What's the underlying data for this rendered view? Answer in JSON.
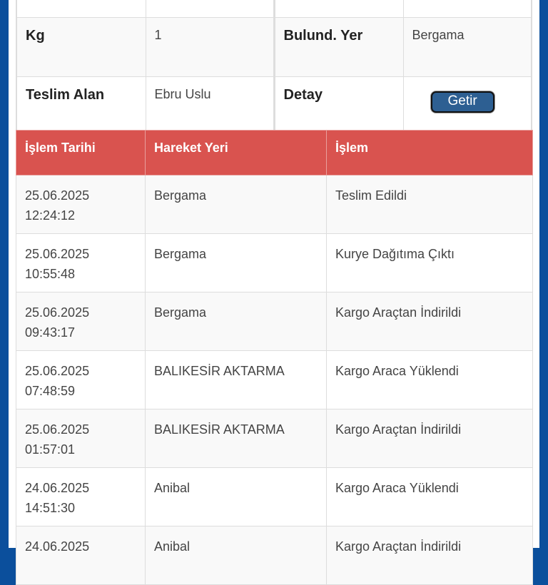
{
  "info": {
    "rows": [
      {
        "l1": "Kg",
        "v1": "1",
        "l2": "Bulund. Yer",
        "v2": "Bergama"
      },
      {
        "l1": "Teslim Alan",
        "v1": "Ebru Uslu",
        "l2": "Detay",
        "button": "Getir"
      }
    ]
  },
  "movements": {
    "headers": [
      "İşlem Tarihi",
      "Hareket Yeri",
      "İşlem"
    ],
    "rows": [
      {
        "date": "25.06.2025",
        "time": "12:24:12",
        "place": "Bergama",
        "action": "Teslim Edildi"
      },
      {
        "date": "25.06.2025",
        "time": "10:55:48",
        "place": "Bergama",
        "action": "Kurye Dağıtıma Çıktı"
      },
      {
        "date": "25.06.2025",
        "time": "09:43:17",
        "place": "Bergama",
        "action": "Kargo Araçtan İndirildi"
      },
      {
        "date": "25.06.2025",
        "time": "07:48:59",
        "place": "BALIKESİR AKTARMA",
        "action": "Kargo Araca Yüklendi"
      },
      {
        "date": "25.06.2025",
        "time": "01:57:01",
        "place": "BALIKESİR AKTARMA",
        "action": "Kargo Araçtan İndirildi"
      },
      {
        "date": "24.06.2025",
        "time": "14:51:30",
        "place": "Anibal",
        "action": "Kargo Araca Yüklendi"
      },
      {
        "date": "24.06.2025",
        "time": "",
        "place": "Anibal",
        "action": "Kargo Araçtan İndirildi"
      }
    ]
  },
  "colors": {
    "header": "#d9534f",
    "frame": "#0b4f9c",
    "button": "#2d5f92"
  }
}
